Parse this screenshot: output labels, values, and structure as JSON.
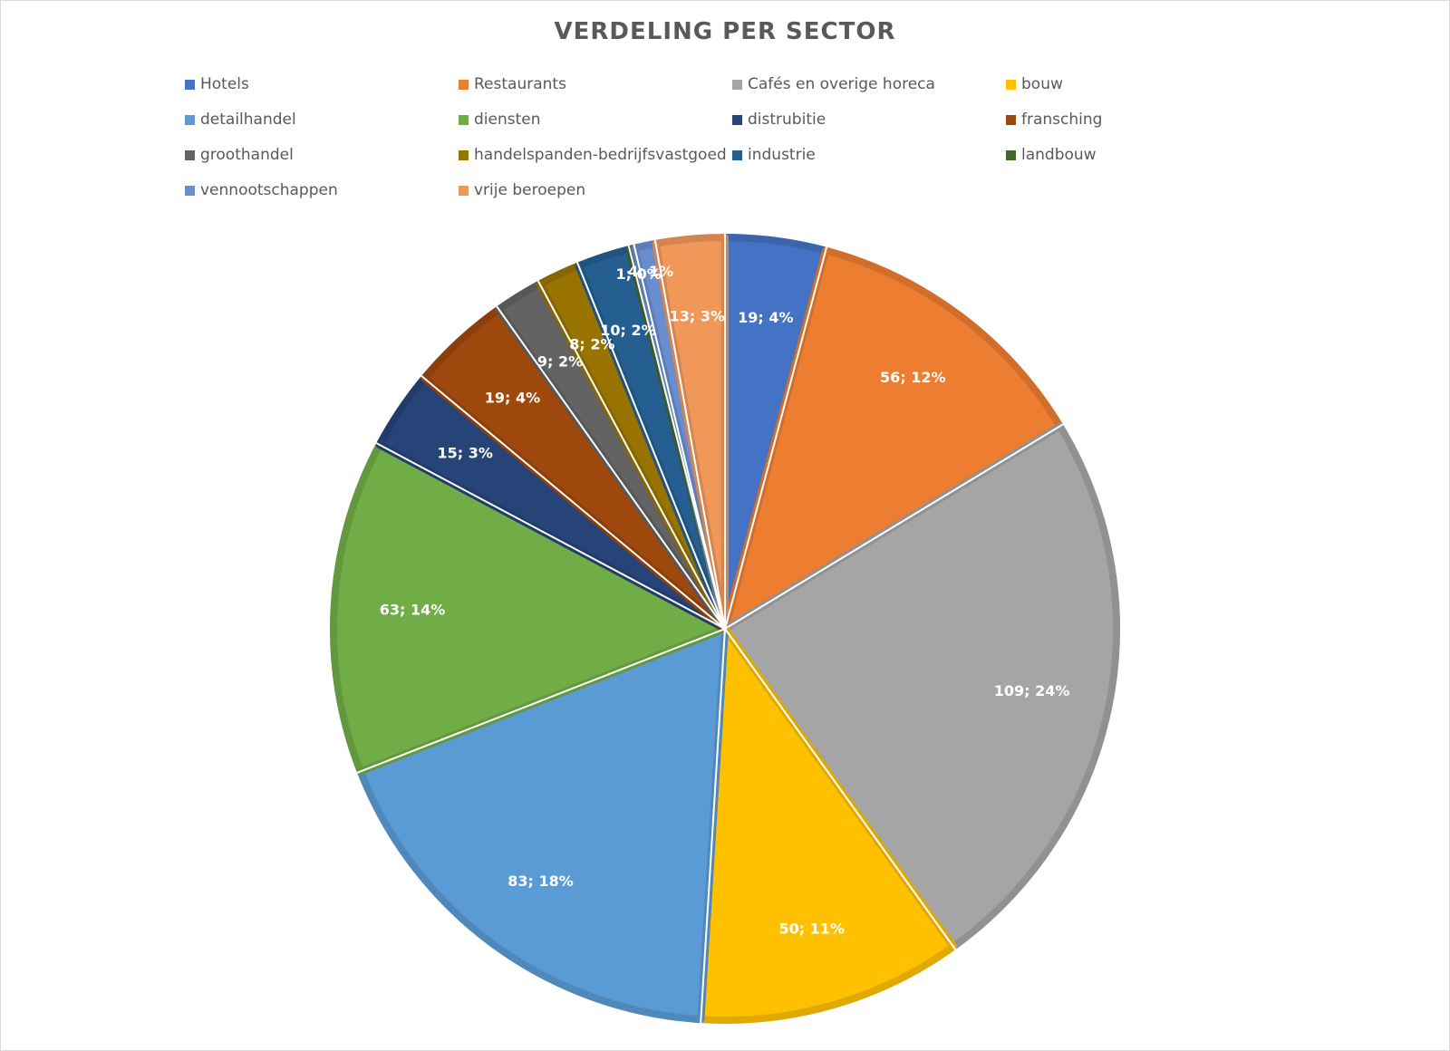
{
  "chart_data": {
    "type": "pie",
    "title": "VERDELING PER SECTOR",
    "legend_position": "top",
    "categories": [
      "Hotels",
      "Restaurants",
      "Cafés en overige  horeca",
      "bouw",
      "detailhandel",
      "diensten",
      "distrubitie",
      "fransching",
      "groothandel",
      "handelspanden-bedrijfsvastgoed",
      "industrie",
      "landbouw",
      "vennootschappen",
      "vrije beroepen"
    ],
    "values": [
      19,
      56,
      109,
      50,
      83,
      63,
      15,
      19,
      9,
      8,
      10,
      1,
      4,
      13
    ],
    "labels": [
      "19; 4%",
      "56; 12%",
      "109; 24%",
      "50; 11%",
      "83; 18%",
      "63; 14%",
      "15; 3%",
      "19; 4%",
      "9; 2%",
      "8; 2%",
      "10; 2%",
      "1; 0%",
      "4; 1%",
      "13; 3%"
    ],
    "colors": [
      "#4472C4",
      "#ED7D31",
      "#A5A5A5",
      "#FFC000",
      "#5B9BD5",
      "#70AD47",
      "#264478",
      "#9E480E",
      "#636363",
      "#997300",
      "#255E91",
      "#43682B",
      "#698ED0",
      "#F1975A"
    ]
  }
}
